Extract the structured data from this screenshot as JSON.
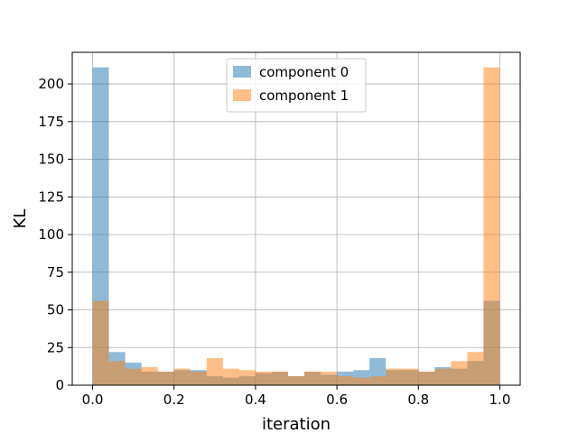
{
  "chart_data": {
    "type": "bar",
    "subtype": "histogram-overlay",
    "title": "",
    "xlabel": "iteration",
    "ylabel": "KL",
    "xlim": [
      -0.05,
      1.05
    ],
    "ylim": [
      0,
      221
    ],
    "xticks": [
      0.0,
      0.2,
      0.4,
      0.6,
      0.8,
      1.0
    ],
    "xtick_labels": [
      "0.0",
      "0.2",
      "0.4",
      "0.6",
      "0.8",
      "1.0"
    ],
    "yticks": [
      0,
      25,
      50,
      75,
      100,
      125,
      150,
      175,
      200
    ],
    "ytick_labels": [
      "0",
      "25",
      "50",
      "75",
      "100",
      "125",
      "150",
      "175",
      "200"
    ],
    "grid": true,
    "legend_position": "top-center",
    "bin_edges": [
      0.0,
      0.04,
      0.08,
      0.12,
      0.16,
      0.2,
      0.24,
      0.28,
      0.32,
      0.36,
      0.4,
      0.44,
      0.48,
      0.52,
      0.56,
      0.6,
      0.64,
      0.68,
      0.72,
      0.76,
      0.8,
      0.84,
      0.88,
      0.92,
      0.96,
      1.0
    ],
    "series": [
      {
        "name": "component 0",
        "color": "#1f77b4",
        "alpha": 0.5,
        "values": [
          211,
          22,
          15,
          9,
          9,
          10,
          10,
          6,
          5,
          6,
          8,
          9,
          6,
          9,
          7,
          9,
          10,
          18,
          10,
          10,
          9,
          12,
          11,
          16,
          56
        ]
      },
      {
        "name": "component 1",
        "color": "#ff7f0e",
        "alpha": 0.5,
        "values": [
          56,
          16,
          11,
          12,
          9,
          11,
          9,
          18,
          11,
          10,
          9,
          9,
          6,
          9,
          9,
          6,
          5,
          6,
          11,
          11,
          9,
          11,
          16,
          22,
          211
        ]
      }
    ]
  }
}
